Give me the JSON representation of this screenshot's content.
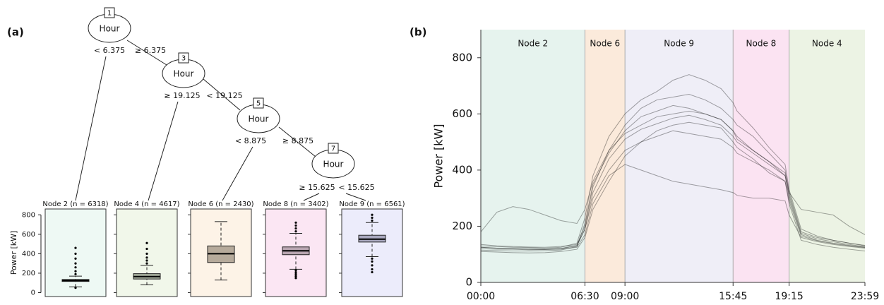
{
  "panels": [
    "(a)",
    "(b)"
  ],
  "tree": {
    "nodes": [
      {
        "id": "1",
        "label": "Hour"
      },
      {
        "id": "3",
        "label": "Hour"
      },
      {
        "id": "5",
        "label": "Hour"
      },
      {
        "id": "7",
        "label": "Hour"
      }
    ],
    "edge_labels": [
      "< 6.375",
      "≥ 6.375",
      "≥ 19.125",
      "< 19.125",
      "< 8.875",
      "≥ 8.875",
      "≥ 15.625",
      "< 15.625"
    ]
  },
  "chart_data": [
    {
      "type": "boxplot",
      "ylabel": "Power [kW]",
      "ylim": [
        -40,
        860
      ],
      "yticks": [
        0,
        200,
        400,
        600,
        800
      ],
      "boxes": [
        {
          "label": "Node 2 (n = 6318)",
          "panel_color": "#eef9f4",
          "color": "#7a7f7a",
          "whislo": 60,
          "q1": 115,
          "med": 125,
          "q3": 135,
          "whishi": 170,
          "fliers": [
            50,
            190,
            220,
            260,
            300,
            350,
            400,
            460
          ]
        },
        {
          "label": "Node 4 (n = 4617)",
          "panel_color": "#f1f7ea",
          "color": "#a9b1a0",
          "whislo": 80,
          "q1": 140,
          "med": 165,
          "q3": 195,
          "whishi": 280,
          "fliers": [
            300,
            330,
            360,
            400,
            450,
            510
          ]
        },
        {
          "label": "Node 6 (n = 2430)",
          "panel_color": "#fdf3e7",
          "color": "#b6aa9b",
          "whislo": 130,
          "q1": 310,
          "med": 400,
          "q3": 480,
          "whishi": 730,
          "fliers": []
        },
        {
          "label": "Node 8 (n = 3402)",
          "panel_color": "#fbe6f3",
          "color": "#b9a6b1",
          "whislo": 240,
          "q1": 390,
          "med": 430,
          "q3": 470,
          "whishi": 610,
          "fliers": [
            150,
            170,
            190,
            210,
            230,
            630,
            660,
            690,
            720
          ]
        },
        {
          "label": "Node 9 (n = 6561)",
          "panel_color": "#ececfb",
          "color": "#aaa9c0",
          "whislo": 370,
          "q1": 520,
          "med": 550,
          "q3": 590,
          "whishi": 720,
          "fliers": [
            210,
            240,
            280,
            320,
            350,
            740,
            770,
            800
          ]
        }
      ]
    },
    {
      "type": "line",
      "ylabel": "Power [kW]",
      "ylim": [
        0,
        900
      ],
      "yticks": [
        0,
        200,
        400,
        600,
        800
      ],
      "xlim": [
        0,
        23.9833
      ],
      "xticks": [
        {
          "value": 0,
          "label": "00:00"
        },
        {
          "value": 6.5,
          "label": "06:30"
        },
        {
          "value": 9,
          "label": "09:00"
        },
        {
          "value": 15.75,
          "label": "15:45"
        },
        {
          "value": 19.25,
          "label": "19:15"
        },
        {
          "value": 23.9833,
          "label": "23:59"
        }
      ],
      "regions": [
        {
          "label": "Node 2",
          "start": 0,
          "end": 6.5,
          "color": "#e6f3ee"
        },
        {
          "label": "Node 6",
          "start": 6.5,
          "end": 9,
          "color": "#fbeadb"
        },
        {
          "label": "Node 9",
          "start": 9,
          "end": 15.75,
          "color": "#efeef7"
        },
        {
          "label": "Node 8",
          "start": 15.75,
          "end": 19.25,
          "color": "#fbe3f2"
        },
        {
          "label": "Node 4",
          "start": 19.25,
          "end": 23.9833,
          "color": "#ecf3e4"
        }
      ],
      "line_opacity": 0.35,
      "x": [
        0,
        1,
        2,
        3,
        4,
        5,
        6,
        6.5,
        7,
        8,
        9,
        10,
        11,
        12,
        13,
        14,
        15,
        15.75,
        16,
        17,
        18,
        19,
        19.25,
        20,
        21,
        22,
        23,
        23.9833
      ],
      "series": [
        {
          "color": "#000000",
          "values": [
            125,
            122,
            120,
            118,
            118,
            120,
            130,
            190,
            320,
            440,
            510,
            545,
            565,
            585,
            595,
            580,
            560,
            520,
            500,
            460,
            420,
            380,
            300,
            170,
            150,
            140,
            132,
            125
          ]
        },
        {
          "color": "#000000",
          "values": [
            130,
            128,
            125,
            124,
            122,
            125,
            140,
            230,
            380,
            520,
            600,
            650,
            680,
            720,
            740,
            720,
            690,
            640,
            610,
            550,
            480,
            420,
            330,
            190,
            165,
            150,
            140,
            130
          ]
        },
        {
          "color": "#000000",
          "values": [
            120,
            118,
            118,
            116,
            117,
            118,
            125,
            170,
            280,
            380,
            420,
            400,
            380,
            360,
            350,
            340,
            330,
            320,
            310,
            300,
            300,
            290,
            240,
            160,
            145,
            135,
            128,
            122
          ]
        },
        {
          "color": "#000000",
          "values": [
            180,
            250,
            270,
            260,
            240,
            220,
            210,
            260,
            360,
            470,
            530,
            560,
            590,
            600,
            610,
            600,
            580,
            540,
            520,
            470,
            430,
            390,
            320,
            260,
            250,
            240,
            200,
            170
          ]
        },
        {
          "color": "#000000",
          "values": [
            115,
            113,
            112,
            112,
            113,
            115,
            128,
            210,
            350,
            460,
            540,
            590,
            610,
            630,
            620,
            600,
            580,
            540,
            510,
            470,
            430,
            380,
            310,
            175,
            155,
            145,
            135,
            127
          ]
        },
        {
          "color": "#000000",
          "values": [
            135,
            130,
            128,
            126,
            125,
            128,
            135,
            200,
            340,
            470,
            560,
            620,
            650,
            660,
            670,
            650,
            620,
            580,
            560,
            520,
            460,
            400,
            320,
            180,
            160,
            150,
            140,
            132
          ]
        },
        {
          "color": "#000000",
          "values": [
            125,
            122,
            120,
            119,
            118,
            121,
            132,
            190,
            300,
            400,
            470,
            500,
            520,
            540,
            530,
            520,
            510,
            480,
            460,
            430,
            400,
            360,
            290,
            165,
            148,
            138,
            130,
            124
          ]
        },
        {
          "color": "#000000",
          "values": [
            110,
            108,
            106,
            105,
            106,
            110,
            118,
            160,
            260,
            360,
            450,
            500,
            540,
            560,
            570,
            560,
            550,
            500,
            480,
            440,
            390,
            360,
            280,
            150,
            135,
            125,
            118,
            112
          ]
        }
      ]
    }
  ]
}
